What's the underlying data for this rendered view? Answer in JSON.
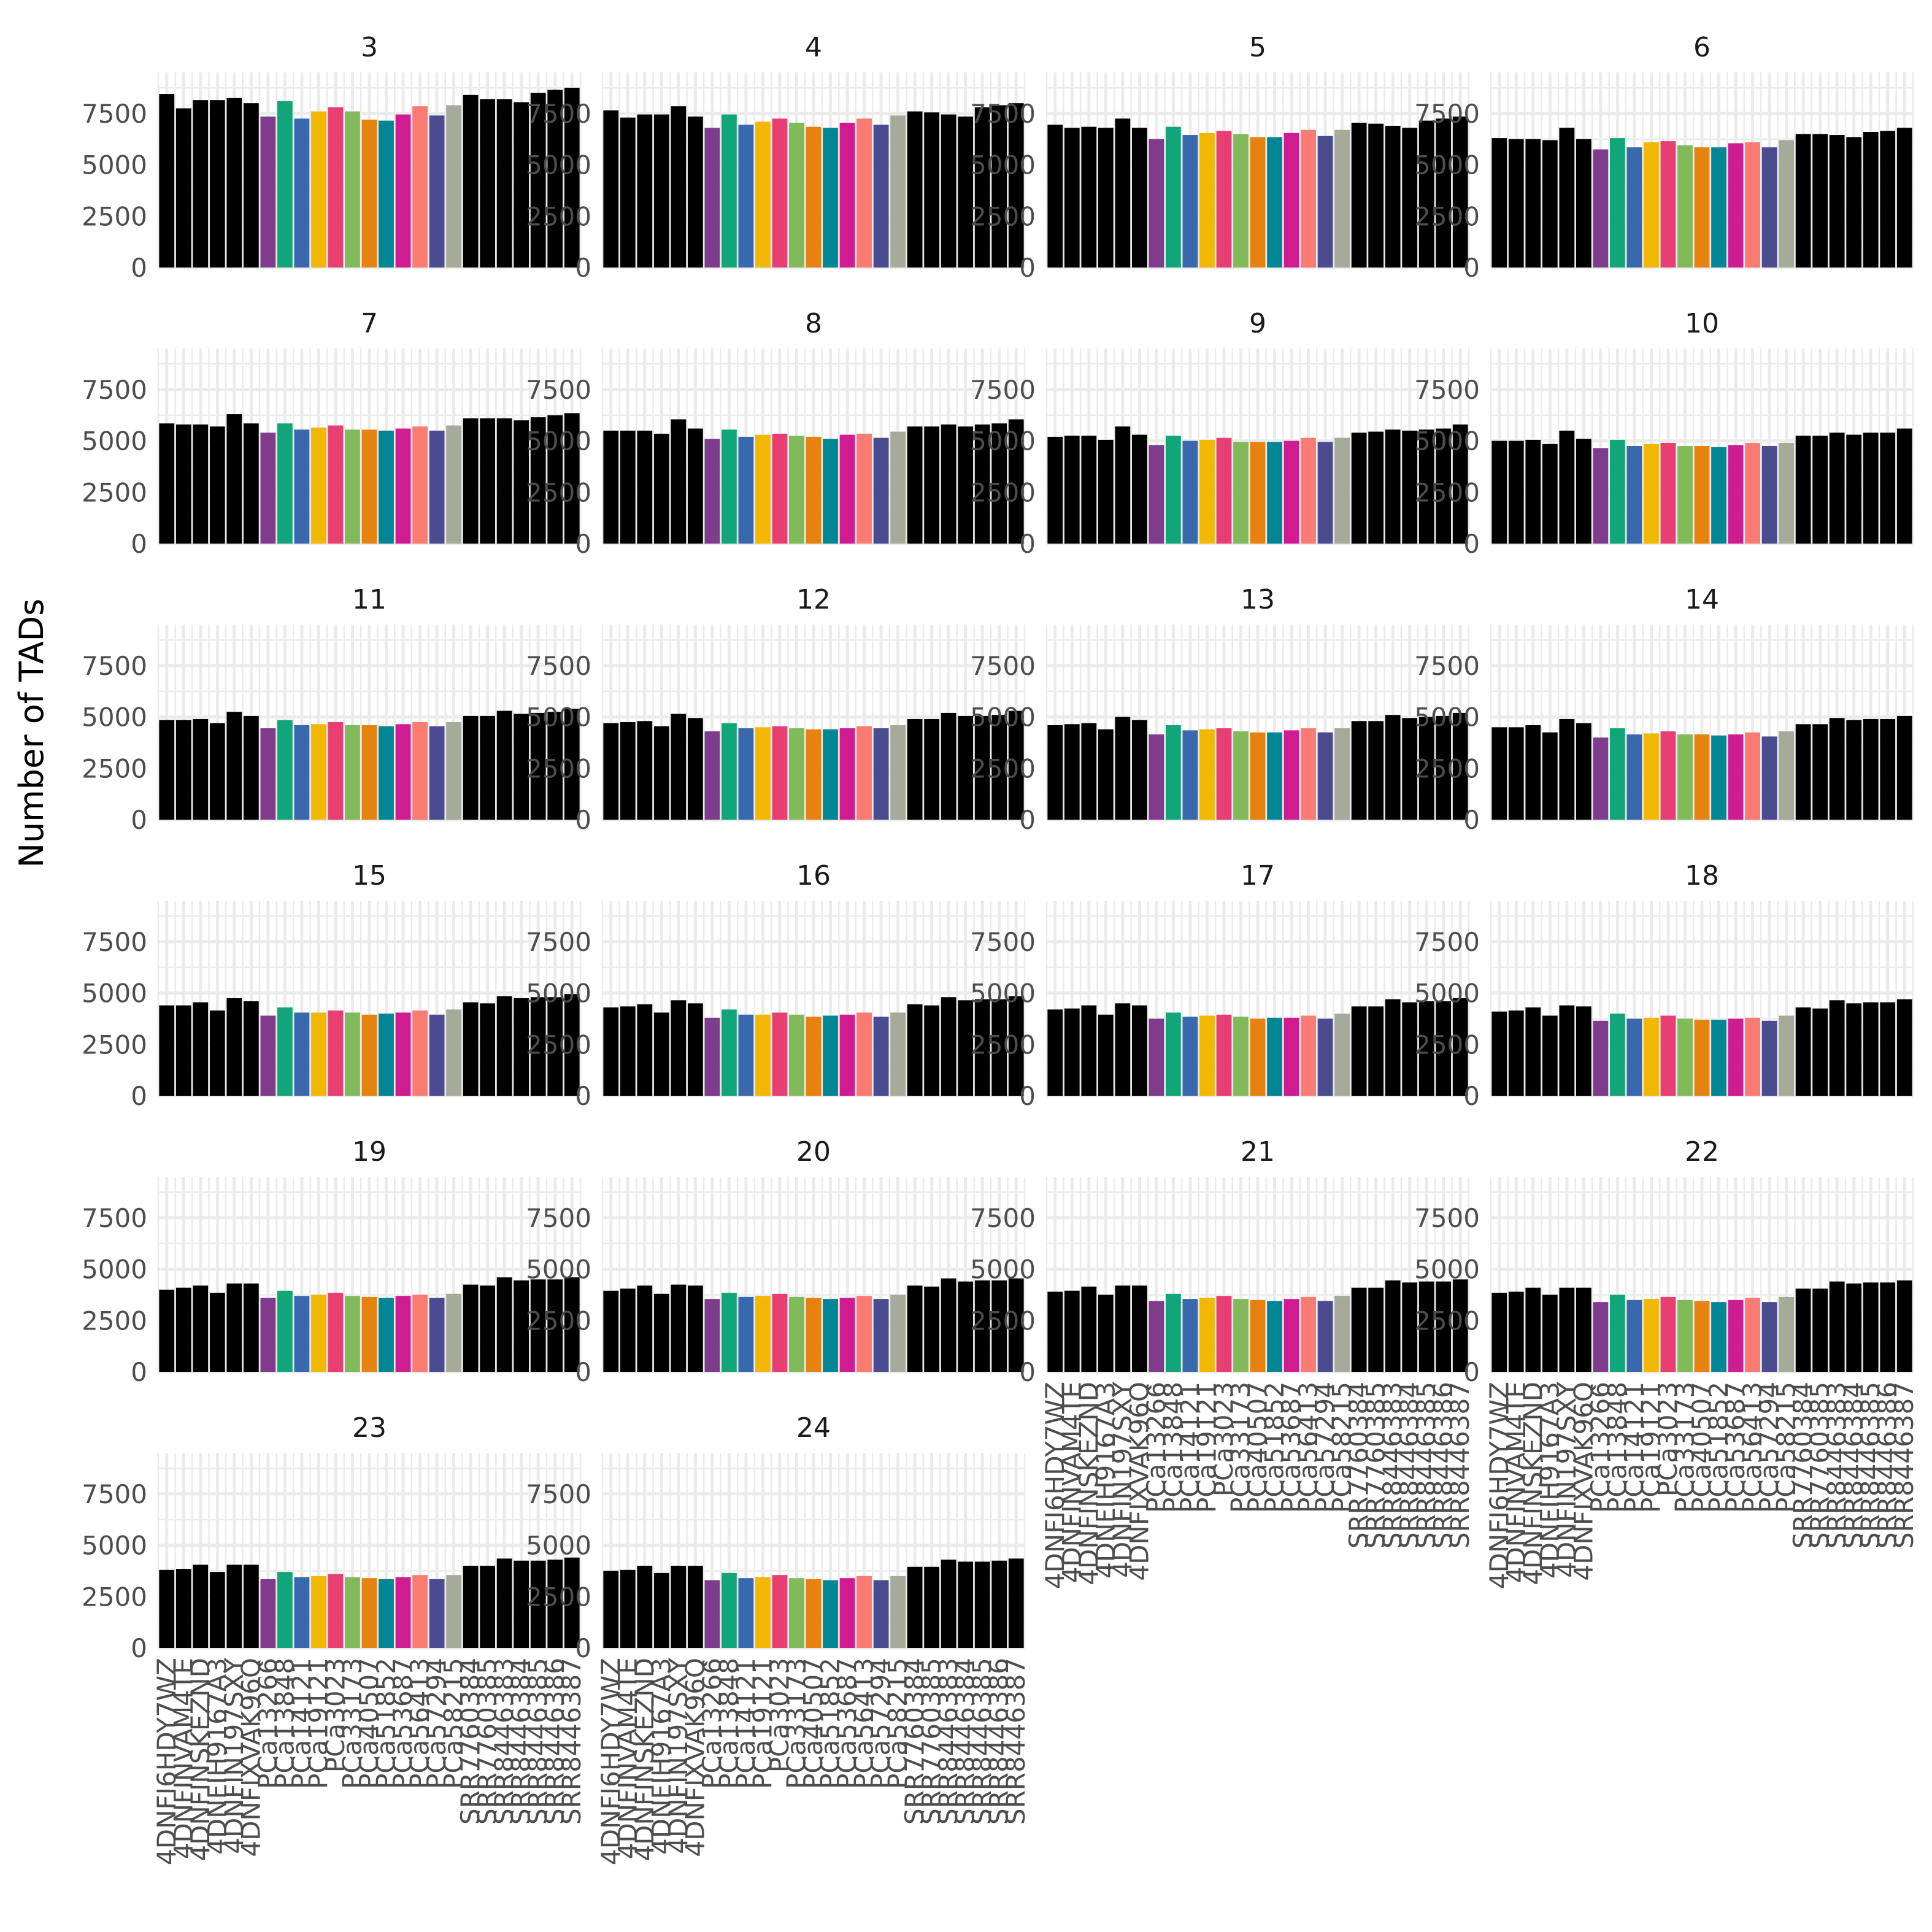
{
  "chart_data": {
    "type": "bar",
    "facet_layout": "4 columns x 6 rows",
    "ylabel": "Number of TADs",
    "ylim": [
      0,
      9200
    ],
    "yticks": [
      0,
      2500,
      5000,
      7500
    ],
    "grid": true,
    "legend": "none",
    "categories": [
      "4DNFI6HDY7WZ",
      "4DNFINVAM4TE",
      "4DNFINSKEZND",
      "4DNFIH9167A3",
      "4DNFIN197SXY",
      "4DNFIXVAK96Q",
      "PCa13266",
      "PCa13848",
      "PCa14121",
      "PCa19121",
      "PCa3023",
      "PCa33173",
      "PCa40507",
      "PCa51852",
      "PCa53687",
      "PCa56413",
      "PCa57294",
      "PCa58215",
      "SRR7760384",
      "SRR7760385",
      "SRR8446383",
      "SRR8446384",
      "SRR8446385",
      "SRR8446386",
      "SRR8446387"
    ],
    "bar_colors": [
      "#000000",
      "#000000",
      "#000000",
      "#000000",
      "#000000",
      "#000000",
      "#7F3C8D",
      "#11A579",
      "#3969AC",
      "#F2B701",
      "#E73F74",
      "#80BA5A",
      "#E68310",
      "#008695",
      "#CF1C90",
      "#F97B72",
      "#4B4B8F",
      "#A5AA99",
      "#000000",
      "#000000",
      "#000000",
      "#000000",
      "#000000",
      "#000000",
      "#000000"
    ],
    "panels": [
      {
        "title": "3",
        "values": [
          8450,
          7750,
          8150,
          8150,
          8250,
          8000,
          7350,
          8100,
          7250,
          7600,
          7800,
          7600,
          7200,
          7150,
          7450,
          7850,
          7400,
          7900,
          8400,
          8200,
          8200,
          8050,
          8500,
          8650,
          8750
        ]
      },
      {
        "title": "4",
        "values": [
          7650,
          7300,
          7450,
          7450,
          7850,
          7350,
          6800,
          7450,
          6950,
          7100,
          7250,
          7050,
          6850,
          6800,
          7050,
          7250,
          6950,
          7400,
          7600,
          7550,
          7450,
          7350,
          7800,
          7900,
          8000
        ]
      },
      {
        "title": "5",
        "values": [
          6950,
          6800,
          6850,
          6800,
          7250,
          6800,
          6250,
          6850,
          6450,
          6550,
          6650,
          6500,
          6350,
          6350,
          6550,
          6700,
          6400,
          6700,
          7050,
          7000,
          6900,
          6800,
          7150,
          7250,
          7350
        ]
      },
      {
        "title": "6",
        "values": [
          6300,
          6250,
          6250,
          6200,
          6800,
          6250,
          5750,
          6300,
          5850,
          6100,
          6150,
          5950,
          5850,
          5850,
          6050,
          6100,
          5850,
          6200,
          6500,
          6500,
          6450,
          6350,
          6600,
          6650,
          6800
        ]
      },
      {
        "title": "7",
        "values": [
          5850,
          5800,
          5800,
          5700,
          6300,
          5850,
          5400,
          5850,
          5550,
          5650,
          5750,
          5550,
          5550,
          5500,
          5600,
          5700,
          5500,
          5750,
          6100,
          6100,
          6100,
          6000,
          6150,
          6250,
          6350
        ]
      },
      {
        "title": "8",
        "values": [
          5500,
          5500,
          5500,
          5350,
          6050,
          5600,
          5100,
          5550,
          5200,
          5300,
          5350,
          5250,
          5200,
          5100,
          5300,
          5350,
          5150,
          5450,
          5700,
          5700,
          5800,
          5700,
          5800,
          5850,
          6050
        ]
      },
      {
        "title": "9",
        "values": [
          5200,
          5250,
          5250,
          5050,
          5700,
          5300,
          4800,
          5250,
          5000,
          5050,
          5150,
          4950,
          4950,
          4950,
          5000,
          5150,
          4950,
          5150,
          5400,
          5450,
          5550,
          5500,
          5550,
          5600,
          5800
        ]
      },
      {
        "title": "10",
        "values": [
          5000,
          5000,
          5050,
          4850,
          5500,
          5100,
          4650,
          5050,
          4750,
          4850,
          4900,
          4750,
          4750,
          4700,
          4800,
          4900,
          4750,
          4900,
          5250,
          5250,
          5400,
          5300,
          5400,
          5400,
          5600
        ]
      },
      {
        "title": "11",
        "values": [
          4850,
          4850,
          4900,
          4700,
          5250,
          5050,
          4450,
          4850,
          4600,
          4650,
          4750,
          4600,
          4600,
          4550,
          4650,
          4750,
          4550,
          4750,
          5050,
          5050,
          5300,
          5150,
          5200,
          5250,
          5400
        ]
      },
      {
        "title": "12",
        "values": [
          4700,
          4750,
          4800,
          4550,
          5150,
          4950,
          4300,
          4700,
          4450,
          4500,
          4550,
          4450,
          4400,
          4400,
          4450,
          4550,
          4450,
          4600,
          4900,
          4900,
          5200,
          5050,
          5050,
          5100,
          5300
        ]
      },
      {
        "title": "13",
        "values": [
          4600,
          4650,
          4700,
          4400,
          5000,
          4850,
          4150,
          4600,
          4350,
          4400,
          4450,
          4300,
          4250,
          4250,
          4350,
          4450,
          4250,
          4450,
          4800,
          4800,
          5100,
          4950,
          5000,
          5050,
          5200
        ]
      },
      {
        "title": "14",
        "values": [
          4500,
          4500,
          4600,
          4250,
          4900,
          4700,
          4000,
          4450,
          4150,
          4200,
          4300,
          4150,
          4150,
          4100,
          4150,
          4250,
          4050,
          4300,
          4650,
          4650,
          4950,
          4850,
          4900,
          4900,
          5050
        ]
      },
      {
        "title": "15",
        "values": [
          4400,
          4400,
          4550,
          4150,
          4750,
          4600,
          3900,
          4300,
          4050,
          4050,
          4150,
          4050,
          3950,
          4000,
          4050,
          4150,
          3950,
          4200,
          4550,
          4500,
          4850,
          4750,
          4800,
          4800,
          4950
        ]
      },
      {
        "title": "16",
        "values": [
          4300,
          4350,
          4450,
          4050,
          4650,
          4500,
          3800,
          4200,
          3950,
          3950,
          4050,
          3950,
          3850,
          3900,
          3950,
          4050,
          3850,
          4050,
          4450,
          4400,
          4800,
          4650,
          4700,
          4700,
          4850
        ]
      },
      {
        "title": "17",
        "values": [
          4200,
          4250,
          4400,
          3950,
          4500,
          4400,
          3750,
          4050,
          3850,
          3900,
          3950,
          3850,
          3750,
          3800,
          3800,
          3900,
          3750,
          4000,
          4350,
          4350,
          4700,
          4550,
          4600,
          4600,
          4750
        ]
      },
      {
        "title": "18",
        "values": [
          4100,
          4150,
          4300,
          3900,
          4400,
          4350,
          3650,
          4000,
          3750,
          3800,
          3900,
          3750,
          3700,
          3700,
          3750,
          3800,
          3650,
          3900,
          4300,
          4250,
          4650,
          4500,
          4550,
          4550,
          4700
        ]
      },
      {
        "title": "19",
        "values": [
          4000,
          4100,
          4200,
          3850,
          4300,
          4300,
          3600,
          3950,
          3700,
          3750,
          3850,
          3700,
          3650,
          3600,
          3700,
          3750,
          3600,
          3800,
          4250,
          4200,
          4600,
          4450,
          4500,
          4500,
          4600
        ]
      },
      {
        "title": "20",
        "values": [
          3950,
          4050,
          4200,
          3800,
          4250,
          4200,
          3550,
          3850,
          3650,
          3700,
          3800,
          3650,
          3600,
          3550,
          3600,
          3700,
          3550,
          3750,
          4200,
          4150,
          4550,
          4400,
          4450,
          4450,
          4550
        ]
      },
      {
        "title": "21",
        "values": [
          3900,
          3950,
          4150,
          3750,
          4200,
          4200,
          3450,
          3800,
          3550,
          3600,
          3700,
          3550,
          3500,
          3450,
          3550,
          3650,
          3450,
          3700,
          4100,
          4100,
          4450,
          4350,
          4400,
          4400,
          4500
        ]
      },
      {
        "title": "22",
        "values": [
          3850,
          3900,
          4100,
          3750,
          4100,
          4100,
          3400,
          3750,
          3500,
          3550,
          3650,
          3500,
          3450,
          3400,
          3500,
          3600,
          3400,
          3650,
          4050,
          4050,
          4400,
          4300,
          4350,
          4350,
          4450
        ]
      },
      {
        "title": "23",
        "values": [
          3800,
          3850,
          4050,
          3700,
          4050,
          4050,
          3350,
          3700,
          3450,
          3500,
          3600,
          3450,
          3400,
          3350,
          3450,
          3550,
          3350,
          3550,
          4000,
          4000,
          4350,
          4250,
          4250,
          4300,
          4400
        ]
      },
      {
        "title": "24",
        "values": [
          3750,
          3800,
          4000,
          3650,
          4000,
          4000,
          3300,
          3650,
          3400,
          3450,
          3550,
          3400,
          3350,
          3300,
          3400,
          3500,
          3300,
          3500,
          3950,
          3950,
          4300,
          4200,
          4200,
          4250,
          4350
        ]
      }
    ]
  }
}
